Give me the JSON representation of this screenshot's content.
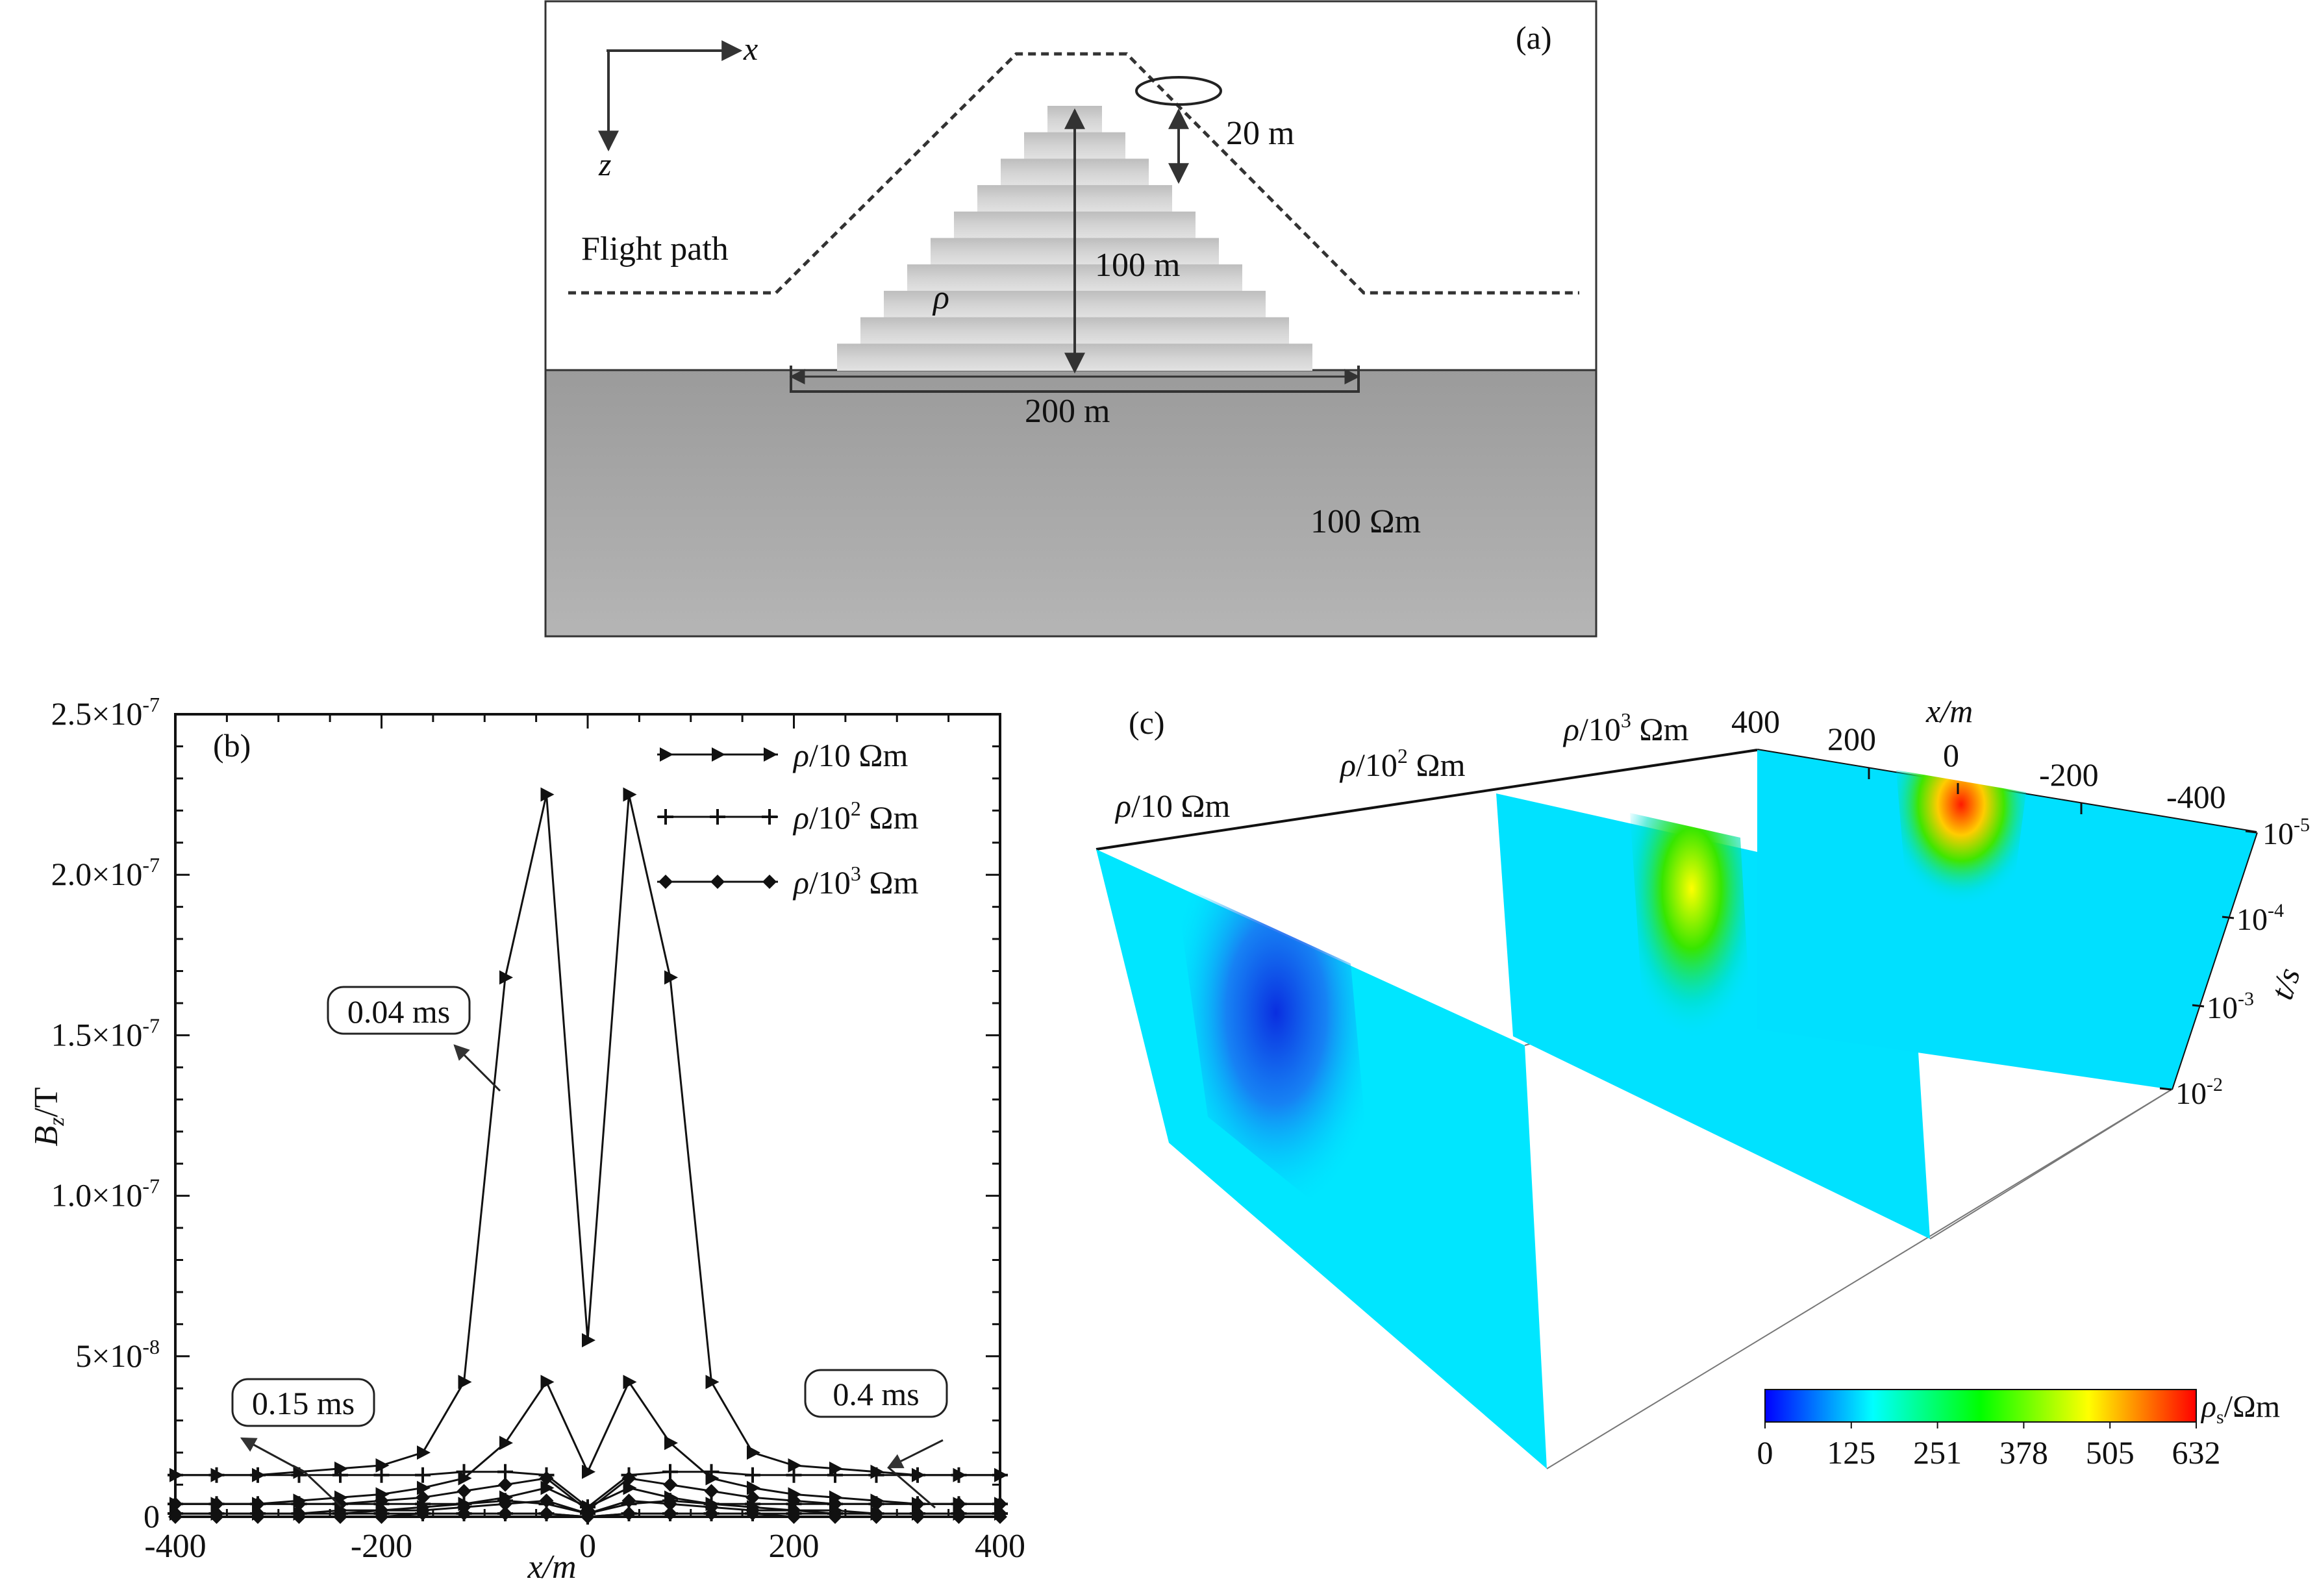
{
  "panel_a": {
    "label": "(a)",
    "axis_x": "x",
    "axis_z": "z",
    "flight_path_label": "Flight path",
    "rho_label": "ρ",
    "height_label": "20 m",
    "hill_height_label": "100 m",
    "hill_width_label": "200 m",
    "background_label": "100 Ωm"
  },
  "panel_b": {
    "label": "(b)",
    "ylabel_main": "B",
    "ylabel_sub": "z",
    "ylabel_unit": "/T",
    "xlabel": "x/m",
    "ann_004": "0.04 ms",
    "ann_015": "0.15 ms",
    "ann_04": "0.4 ms",
    "legend": [
      {
        "rho": "ρ",
        "text": "/10 Ωm",
        "marker": "triangle"
      },
      {
        "rho": "ρ",
        "text": "/10",
        "sup": "2",
        "unit": " Ωm",
        "marker": "plus"
      },
      {
        "rho": "ρ",
        "text": "/10",
        "sup": "3",
        "unit": " Ωm",
        "marker": "diamond"
      }
    ],
    "xticks": [
      "-400",
      "-200",
      "0",
      "200",
      "400"
    ],
    "yticks": [
      {
        "v": 0,
        "base": "0",
        "exp": ""
      },
      {
        "v": 5e-08,
        "base": "5×10",
        "exp": "-8"
      },
      {
        "v": 1e-07,
        "base": "1.0×10",
        "exp": "-7"
      },
      {
        "v": 1.5e-07,
        "base": "1.5×10",
        "exp": "-7"
      },
      {
        "v": 2e-07,
        "base": "2.0×10",
        "exp": "-7"
      },
      {
        "v": 2.5e-07,
        "base": "2.5×10",
        "exp": "-7"
      }
    ]
  },
  "chart_data": {
    "type": "line",
    "xlabel": "x/m",
    "ylabel": "Bz/T",
    "xlim": [
      -400,
      400
    ],
    "ylim": [
      0,
      2.5e-07
    ],
    "x": [
      -400,
      -360,
      -320,
      -280,
      -240,
      -200,
      -160,
      -120,
      -80,
      -40,
      0,
      40,
      80,
      120,
      160,
      200,
      240,
      280,
      320,
      360,
      400
    ],
    "series": [
      {
        "name": "ρ/10 Ωm",
        "marker": "triangle",
        "time": "0.04 ms",
        "values": [
          1.3e-08,
          1.3e-08,
          1.3e-08,
          1.4e-08,
          1.5e-08,
          1.6e-08,
          2e-08,
          4.2e-08,
          1.68e-07,
          2.25e-07,
          5.5e-08,
          2.25e-07,
          1.68e-07,
          4.2e-08,
          2e-08,
          1.6e-08,
          1.5e-08,
          1.4e-08,
          1.3e-08,
          1.3e-08,
          1.3e-08
        ]
      },
      {
        "name": "ρ/10 Ωm",
        "marker": "triangle",
        "time": "0.15 ms",
        "values": [
          4e-09,
          4e-09,
          4e-09,
          5e-09,
          6e-09,
          7e-09,
          9e-09,
          1.2e-08,
          2.3e-08,
          4.2e-08,
          1.4e-08,
          4.2e-08,
          2.3e-08,
          1.2e-08,
          9e-09,
          7e-09,
          6e-09,
          5e-09,
          4e-09,
          4e-09,
          4e-09
        ]
      },
      {
        "name": "ρ/10 Ωm",
        "marker": "triangle",
        "time": "0.4 ms",
        "values": [
          1e-09,
          1e-09,
          1e-09,
          1e-09,
          2e-09,
          2e-09,
          3e-09,
          4e-09,
          6e-09,
          9e-09,
          3e-09,
          9e-09,
          6e-09,
          4e-09,
          3e-09,
          2e-09,
          2e-09,
          1e-09,
          1e-09,
          1e-09,
          1e-09
        ]
      },
      {
        "name": "ρ/10² Ωm",
        "marker": "plus",
        "time": "0.04 ms",
        "values": [
          1.3e-08,
          1.3e-08,
          1.3e-08,
          1.3e-08,
          1.3e-08,
          1.3e-08,
          1.3e-08,
          1.4e-08,
          1.4e-08,
          1.3e-08,
          3e-09,
          1.3e-08,
          1.4e-08,
          1.4e-08,
          1.3e-08,
          1.3e-08,
          1.3e-08,
          1.3e-08,
          1.3e-08,
          1.3e-08,
          1.3e-08
        ]
      },
      {
        "name": "ρ/10² Ωm",
        "marker": "plus",
        "time": "0.15 ms",
        "values": [
          4e-09,
          4e-09,
          4e-09,
          4e-09,
          4e-09,
          4e-09,
          4e-09,
          4e-09,
          5e-09,
          4e-09,
          1e-09,
          4e-09,
          5e-09,
          4e-09,
          4e-09,
          4e-09,
          4e-09,
          4e-09,
          4e-09,
          4e-09,
          4e-09
        ]
      },
      {
        "name": "ρ/10² Ωm",
        "marker": "plus",
        "time": "0.4 ms",
        "values": [
          1e-09,
          1e-09,
          1e-09,
          1e-09,
          1e-09,
          1e-09,
          1e-09,
          1e-09,
          1e-09,
          1e-09,
          0,
          1e-09,
          1e-09,
          1e-09,
          1e-09,
          1e-09,
          1e-09,
          1e-09,
          1e-09,
          1e-09,
          1e-09
        ]
      },
      {
        "name": "ρ/10³ Ωm",
        "marker": "diamond",
        "time": "0.04 ms",
        "values": [
          4e-09,
          4e-09,
          4e-09,
          4e-09,
          4e-09,
          5e-09,
          6e-09,
          8e-09,
          1e-08,
          1.2e-08,
          2e-09,
          1.2e-08,
          1e-08,
          8e-09,
          6e-09,
          5e-09,
          4e-09,
          4e-09,
          4e-09,
          4e-09,
          4e-09
        ]
      },
      {
        "name": "ρ/10³ Ωm",
        "marker": "diamond",
        "time": "0.15 ms",
        "values": [
          1e-09,
          1e-09,
          1e-09,
          1e-09,
          1e-09,
          2e-09,
          2e-09,
          3e-09,
          4e-09,
          5e-09,
          1e-09,
          5e-09,
          4e-09,
          3e-09,
          2e-09,
          2e-09,
          1e-09,
          1e-09,
          1e-09,
          1e-09,
          1e-09
        ]
      },
      {
        "name": "ρ/10³ Ωm",
        "marker": "diamond",
        "time": "0.4 ms",
        "values": [
          0,
          0,
          0,
          0,
          0,
          0,
          1e-09,
          1e-09,
          1e-09,
          1e-09,
          0,
          1e-09,
          1e-09,
          1e-09,
          1e-09,
          0,
          0,
          0,
          0,
          0,
          0
        ]
      }
    ]
  },
  "panel_c": {
    "label": "(c)",
    "section_labels": [
      {
        "rho": "ρ",
        "text": "/10 Ωm"
      },
      {
        "rho": "ρ",
        "text": "/10",
        "sup": "2",
        "unit": " Ωm"
      },
      {
        "rho": "ρ",
        "text": "/10",
        "sup": "3",
        "unit": " Ωm"
      }
    ],
    "xlabel": "x/m",
    "xticks": [
      "400",
      "200",
      "0",
      "-200",
      "-400"
    ],
    "tlabel": "t/s",
    "tticks": [
      {
        "base": "10",
        "exp": "-5"
      },
      {
        "base": "10",
        "exp": "-4"
      },
      {
        "base": "10",
        "exp": "-3"
      },
      {
        "base": "10",
        "exp": "-2"
      }
    ],
    "colorbar": {
      "label_main": "ρ",
      "label_sub": "s",
      "label_unit": "/Ωm",
      "ticks": [
        "0",
        "125",
        "251",
        "378",
        "505",
        "632"
      ],
      "colors": [
        "#0000ff",
        "#00ffff",
        "#00ff00",
        "#ffff00",
        "#ff0000"
      ]
    }
  }
}
